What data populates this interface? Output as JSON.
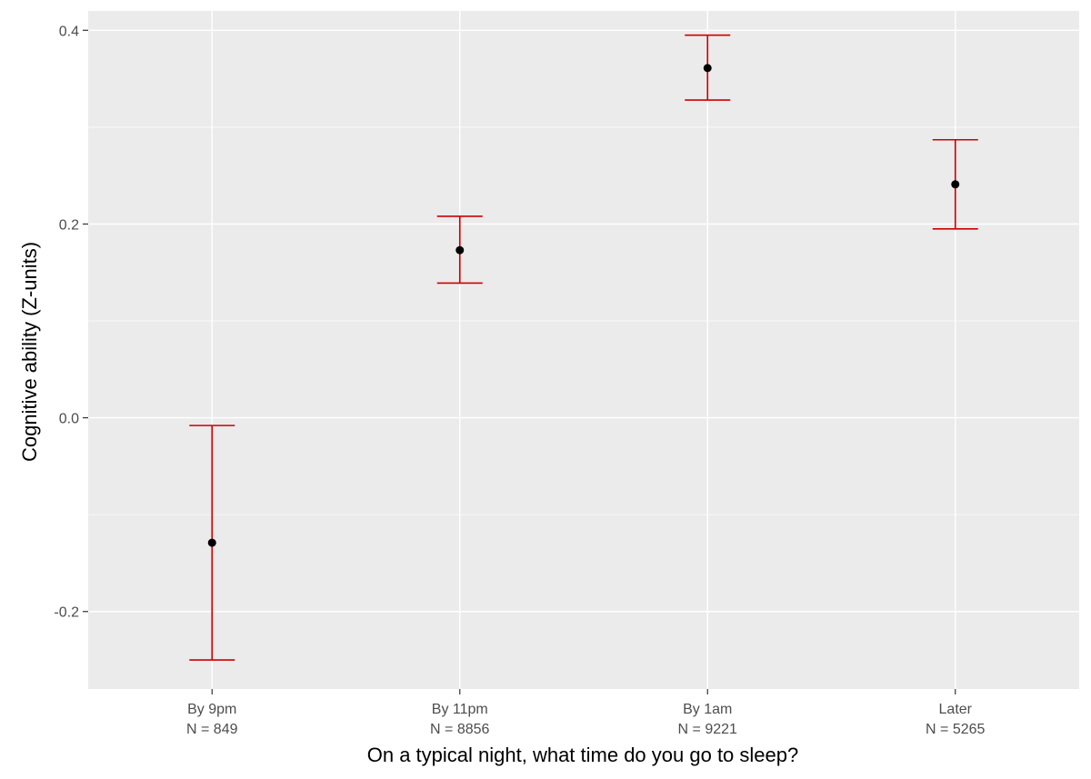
{
  "chart_data": {
    "type": "errorbar",
    "title": "",
    "xlabel": "On a typical night, what time do you go to sleep?",
    "ylabel": "Cognitive ability (Z-units)",
    "categories": [
      "By 9pm",
      "By 11pm",
      "By 1am",
      "Later"
    ],
    "category_counts": [
      "N = 849",
      "N = 8856",
      "N = 9221",
      "N = 5265"
    ],
    "points": [
      {
        "category": "By 9pm",
        "estimate": -0.129,
        "lower": -0.25,
        "upper": -0.008
      },
      {
        "category": "By 11pm",
        "estimate": 0.173,
        "lower": 0.139,
        "upper": 0.208
      },
      {
        "category": "By 1am",
        "estimate": 0.361,
        "lower": 0.328,
        "upper": 0.395
      },
      {
        "category": "Later",
        "estimate": 0.241,
        "lower": 0.195,
        "upper": 0.287
      }
    ],
    "yticks": [
      -0.2,
      0.0,
      0.2,
      0.4
    ],
    "ytick_labels": [
      "-0.2",
      "0.0",
      "0.2",
      "0.4"
    ],
    "ylim": [
      -0.28,
      0.42
    ],
    "grid": true,
    "colors": {
      "panel": "#ebebeb",
      "grid": "#ffffff",
      "errorbar": "#cc0000",
      "point": "#000000",
      "tick_text": "#4d4d4d",
      "title_text": "#000000"
    }
  }
}
